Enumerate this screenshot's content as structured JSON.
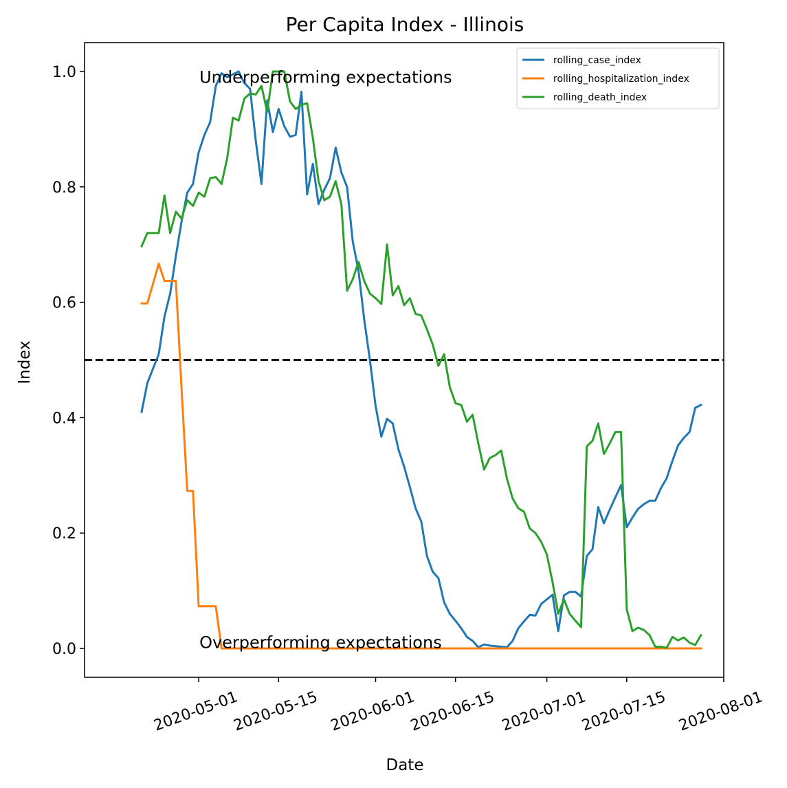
{
  "chart_data": {
    "type": "line",
    "title": "Per Capita Index - Illinois",
    "xlabel": "Date",
    "ylabel": "Index",
    "xlim": [
      "2020-04-11",
      "2020-08-01"
    ],
    "ylim": [
      -0.05,
      1.05
    ],
    "x_ticks": [
      "2020-05-01",
      "2020-05-15",
      "2020-06-01",
      "2020-06-15",
      "2020-07-01",
      "2020-07-15",
      "2020-08-01"
    ],
    "y_ticks": [
      0.0,
      0.2,
      0.4,
      0.6,
      0.8,
      1.0
    ],
    "y_tick_labels": [
      "0.0",
      "0.2",
      "0.4",
      "0.6",
      "0.8",
      "1.0"
    ],
    "x_tick_rotation_deg": 20,
    "grid": false,
    "legend": "top-right",
    "reference_line": {
      "y": 0.5,
      "style": "dashed",
      "color": "#000000"
    },
    "annotations": [
      {
        "text": "Underperforming expectations",
        "x": "2020-05-01",
        "y": 0.99
      },
      {
        "text": "Overperforming expectations",
        "x": "2020-05-01",
        "y": 0.01
      }
    ],
    "series": [
      {
        "name": "rolling_case_index",
        "color": "#1f77b4",
        "points": [
          [
            "2020-04-21",
            0.41
          ],
          [
            "2020-04-22",
            0.46
          ],
          [
            "2020-04-23",
            0.485
          ],
          [
            "2020-04-24",
            0.51
          ],
          [
            "2020-04-25",
            0.575
          ],
          [
            "2020-04-26",
            0.615
          ],
          [
            "2020-04-27",
            0.68
          ],
          [
            "2020-04-28",
            0.74
          ],
          [
            "2020-04-29",
            0.79
          ],
          [
            "2020-04-30",
            0.805
          ],
          [
            "2020-05-01",
            0.86
          ],
          [
            "2020-05-02",
            0.89
          ],
          [
            "2020-05-03",
            0.912
          ],
          [
            "2020-05-04",
            0.975
          ],
          [
            "2020-05-05",
            0.997
          ],
          [
            "2020-05-06",
            0.99
          ],
          [
            "2020-05-07",
            0.995
          ],
          [
            "2020-05-08",
            1.0
          ],
          [
            "2020-05-09",
            0.98
          ],
          [
            "2020-05-10",
            0.97
          ],
          [
            "2020-05-11",
            0.88
          ],
          [
            "2020-05-12",
            0.805
          ],
          [
            "2020-05-13",
            0.95
          ],
          [
            "2020-05-14",
            0.895
          ],
          [
            "2020-05-15",
            0.935
          ],
          [
            "2020-05-16",
            0.905
          ],
          [
            "2020-05-17",
            0.887
          ],
          [
            "2020-05-18",
            0.89
          ],
          [
            "2020-05-19",
            0.965
          ],
          [
            "2020-05-20",
            0.787
          ],
          [
            "2020-05-21",
            0.84
          ],
          [
            "2020-05-22",
            0.77
          ],
          [
            "2020-05-23",
            0.795
          ],
          [
            "2020-05-24",
            0.815
          ],
          [
            "2020-05-25",
            0.868
          ],
          [
            "2020-05-26",
            0.825
          ],
          [
            "2020-05-27",
            0.8
          ],
          [
            "2020-05-28",
            0.705
          ],
          [
            "2020-05-29",
            0.655
          ],
          [
            "2020-05-30",
            0.57
          ],
          [
            "2020-05-31",
            0.5
          ],
          [
            "2020-06-01",
            0.42
          ],
          [
            "2020-06-02",
            0.367
          ],
          [
            "2020-06-03",
            0.398
          ],
          [
            "2020-06-04",
            0.39
          ],
          [
            "2020-06-05",
            0.345
          ],
          [
            "2020-06-06",
            0.315
          ],
          [
            "2020-06-07",
            0.28
          ],
          [
            "2020-06-08",
            0.243
          ],
          [
            "2020-06-09",
            0.22
          ],
          [
            "2020-06-10",
            0.16
          ],
          [
            "2020-06-11",
            0.133
          ],
          [
            "2020-06-12",
            0.122
          ],
          [
            "2020-06-13",
            0.08
          ],
          [
            "2020-06-14",
            0.06
          ],
          [
            "2020-06-15",
            0.048
          ],
          [
            "2020-06-16",
            0.035
          ],
          [
            "2020-06-17",
            0.02
          ],
          [
            "2020-06-18",
            0.013
          ],
          [
            "2020-06-19",
            0.002
          ],
          [
            "2020-06-20",
            0.007
          ],
          [
            "2020-06-21",
            0.005
          ],
          [
            "2020-06-22",
            0.004
          ],
          [
            "2020-06-23",
            0.003
          ],
          [
            "2020-06-24",
            0.002
          ],
          [
            "2020-06-25",
            0.013
          ],
          [
            "2020-06-26",
            0.035
          ],
          [
            "2020-06-27",
            0.047
          ],
          [
            "2020-06-28",
            0.058
          ],
          [
            "2020-06-29",
            0.057
          ],
          [
            "2020-06-30",
            0.077
          ],
          [
            "2020-07-01",
            0.085
          ],
          [
            "2020-07-02",
            0.093
          ],
          [
            "2020-07-03",
            0.03
          ],
          [
            "2020-07-04",
            0.092
          ],
          [
            "2020-07-05",
            0.098
          ],
          [
            "2020-07-06",
            0.098
          ],
          [
            "2020-07-07",
            0.09
          ],
          [
            "2020-07-08",
            0.16
          ],
          [
            "2020-07-09",
            0.172
          ],
          [
            "2020-07-10",
            0.245
          ],
          [
            "2020-07-11",
            0.217
          ],
          [
            "2020-07-12",
            0.24
          ],
          [
            "2020-07-13",
            0.262
          ],
          [
            "2020-07-14",
            0.283
          ],
          [
            "2020-07-15",
            0.21
          ],
          [
            "2020-07-16",
            0.227
          ],
          [
            "2020-07-17",
            0.242
          ],
          [
            "2020-07-18",
            0.25
          ],
          [
            "2020-07-19",
            0.256
          ],
          [
            "2020-07-20",
            0.256
          ],
          [
            "2020-07-21",
            0.278
          ],
          [
            "2020-07-22",
            0.295
          ],
          [
            "2020-07-23",
            0.325
          ],
          [
            "2020-07-24",
            0.352
          ],
          [
            "2020-07-25",
            0.365
          ],
          [
            "2020-07-26",
            0.375
          ],
          [
            "2020-07-27",
            0.417
          ],
          [
            "2020-07-28",
            0.422
          ]
        ]
      },
      {
        "name": "rolling_hospitalization_index",
        "color": "#ff7f0e",
        "points": [
          [
            "2020-04-21",
            0.598
          ],
          [
            "2020-04-22",
            0.598
          ],
          [
            "2020-04-23",
            0.632
          ],
          [
            "2020-04-24",
            0.667
          ],
          [
            "2020-04-25",
            0.637
          ],
          [
            "2020-04-26",
            0.637
          ],
          [
            "2020-04-27",
            0.637
          ],
          [
            "2020-04-28",
            0.45
          ],
          [
            "2020-04-29",
            0.273
          ],
          [
            "2020-04-30",
            0.273
          ],
          [
            "2020-05-01",
            0.073
          ],
          [
            "2020-05-02",
            0.073
          ],
          [
            "2020-05-03",
            0.073
          ],
          [
            "2020-05-04",
            0.073
          ],
          [
            "2020-05-05",
            0.0
          ],
          [
            "2020-05-10",
            0.0
          ],
          [
            "2020-05-20",
            0.0
          ],
          [
            "2020-05-31",
            0.0
          ],
          [
            "2020-06-10",
            0.0
          ],
          [
            "2020-06-20",
            0.0
          ],
          [
            "2020-06-30",
            0.0
          ],
          [
            "2020-07-10",
            0.0
          ],
          [
            "2020-07-20",
            0.0
          ],
          [
            "2020-07-28",
            0.0
          ]
        ]
      },
      {
        "name": "rolling_death_index",
        "color": "#2ca02c",
        "points": [
          [
            "2020-04-21",
            0.697
          ],
          [
            "2020-04-22",
            0.72
          ],
          [
            "2020-04-23",
            0.72
          ],
          [
            "2020-04-24",
            0.72
          ],
          [
            "2020-04-25",
            0.785
          ],
          [
            "2020-04-26",
            0.72
          ],
          [
            "2020-04-27",
            0.757
          ],
          [
            "2020-04-28",
            0.745
          ],
          [
            "2020-04-29",
            0.777
          ],
          [
            "2020-04-30",
            0.767
          ],
          [
            "2020-05-01",
            0.79
          ],
          [
            "2020-05-02",
            0.783
          ],
          [
            "2020-05-03",
            0.815
          ],
          [
            "2020-05-04",
            0.817
          ],
          [
            "2020-05-05",
            0.805
          ],
          [
            "2020-05-06",
            0.85
          ],
          [
            "2020-05-07",
            0.92
          ],
          [
            "2020-05-08",
            0.915
          ],
          [
            "2020-05-09",
            0.953
          ],
          [
            "2020-05-10",
            0.962
          ],
          [
            "2020-05-11",
            0.96
          ],
          [
            "2020-05-12",
            0.975
          ],
          [
            "2020-05-13",
            0.93
          ],
          [
            "2020-05-14",
            1.0
          ],
          [
            "2020-05-15",
            1.0
          ],
          [
            "2020-05-16",
            1.0
          ],
          [
            "2020-05-17",
            0.948
          ],
          [
            "2020-05-18",
            0.935
          ],
          [
            "2020-05-19",
            0.942
          ],
          [
            "2020-05-20",
            0.945
          ],
          [
            "2020-05-21",
            0.885
          ],
          [
            "2020-05-22",
            0.81
          ],
          [
            "2020-05-23",
            0.777
          ],
          [
            "2020-05-24",
            0.783
          ],
          [
            "2020-05-25",
            0.81
          ],
          [
            "2020-05-26",
            0.77
          ],
          [
            "2020-05-27",
            0.62
          ],
          [
            "2020-05-28",
            0.64
          ],
          [
            "2020-05-29",
            0.67
          ],
          [
            "2020-05-30",
            0.637
          ],
          [
            "2020-05-31",
            0.615
          ],
          [
            "2020-06-01",
            0.607
          ],
          [
            "2020-06-02",
            0.597
          ],
          [
            "2020-06-03",
            0.7
          ],
          [
            "2020-06-04",
            0.612
          ],
          [
            "2020-06-05",
            0.628
          ],
          [
            "2020-06-06",
            0.595
          ],
          [
            "2020-06-07",
            0.607
          ],
          [
            "2020-06-08",
            0.58
          ],
          [
            "2020-06-09",
            0.577
          ],
          [
            "2020-06-10",
            0.553
          ],
          [
            "2020-06-11",
            0.527
          ],
          [
            "2020-06-12",
            0.49
          ],
          [
            "2020-06-13",
            0.51
          ],
          [
            "2020-06-14",
            0.453
          ],
          [
            "2020-06-15",
            0.425
          ],
          [
            "2020-06-16",
            0.422
          ],
          [
            "2020-06-17",
            0.393
          ],
          [
            "2020-06-18",
            0.405
          ],
          [
            "2020-06-19",
            0.355
          ],
          [
            "2020-06-20",
            0.31
          ],
          [
            "2020-06-21",
            0.33
          ],
          [
            "2020-06-22",
            0.335
          ],
          [
            "2020-06-23",
            0.343
          ],
          [
            "2020-06-24",
            0.295
          ],
          [
            "2020-06-25",
            0.26
          ],
          [
            "2020-06-26",
            0.243
          ],
          [
            "2020-06-27",
            0.237
          ],
          [
            "2020-06-28",
            0.208
          ],
          [
            "2020-06-29",
            0.2
          ],
          [
            "2020-06-30",
            0.185
          ],
          [
            "2020-07-01",
            0.163
          ],
          [
            "2020-07-02",
            0.115
          ],
          [
            "2020-07-03",
            0.06
          ],
          [
            "2020-07-04",
            0.085
          ],
          [
            "2020-07-05",
            0.06
          ],
          [
            "2020-07-06",
            0.048
          ],
          [
            "2020-07-07",
            0.037
          ],
          [
            "2020-07-08",
            0.35
          ],
          [
            "2020-07-09",
            0.36
          ],
          [
            "2020-07-10",
            0.39
          ],
          [
            "2020-07-11",
            0.337
          ],
          [
            "2020-07-12",
            0.355
          ],
          [
            "2020-07-13",
            0.375
          ],
          [
            "2020-07-14",
            0.375
          ],
          [
            "2020-07-15",
            0.068
          ],
          [
            "2020-07-16",
            0.03
          ],
          [
            "2020-07-17",
            0.036
          ],
          [
            "2020-07-18",
            0.032
          ],
          [
            "2020-07-19",
            0.023
          ],
          [
            "2020-07-20",
            0.003
          ],
          [
            "2020-07-21",
            0.003
          ],
          [
            "2020-07-22",
            0.001
          ],
          [
            "2020-07-23",
            0.02
          ],
          [
            "2020-07-24",
            0.014
          ],
          [
            "2020-07-25",
            0.019
          ],
          [
            "2020-07-26",
            0.01
          ],
          [
            "2020-07-27",
            0.006
          ],
          [
            "2020-07-28",
            0.023
          ]
        ]
      }
    ]
  }
}
